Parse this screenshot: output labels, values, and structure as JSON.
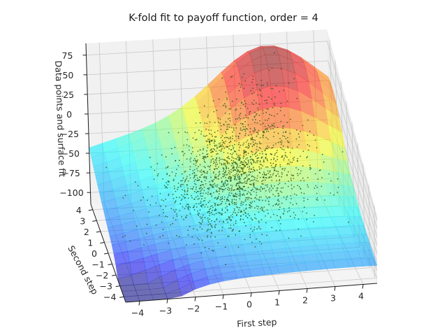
{
  "chart_data": {
    "type": "3d-surface-scatter",
    "title": "K-fold fit to payoff function, order = 4",
    "xlabel": "First step",
    "ylabel": "Second step",
    "zlabel": "Data points and surface fit",
    "x_ticks": [
      "−4",
      "−3",
      "−2",
      "−1",
      "0",
      "1",
      "2",
      "3",
      "4"
    ],
    "y_ticks": [
      "−4",
      "−3",
      "−2",
      "−1",
      "0",
      "1",
      "2",
      "3",
      "4"
    ],
    "z_ticks": [
      "75",
      "50",
      "25",
      "0",
      "−25",
      "−50",
      "−75",
      "−100"
    ],
    "xlim": [
      -4.5,
      4.5
    ],
    "ylim": [
      -4.5,
      4.5
    ],
    "zlim": [
      -115,
      90
    ],
    "colormap": "jet",
    "surface_alpha": 0.55,
    "scatter_color": "#1e4d12",
    "surface": {
      "model": "polynomial order 4",
      "peak": {
        "x": 2.3,
        "y": 3.6,
        "z": 78
      },
      "trough": {
        "x": -4.5,
        "y": -4.5,
        "z": -110
      },
      "z_at_origin": -40
    },
    "scatter": {
      "points": 5000,
      "center": {
        "x": 0.3,
        "y": 0.6
      },
      "spread": {
        "x": 1.3,
        "y": 1.1
      }
    },
    "grid": true,
    "view": {
      "elev": 30,
      "azim": -100
    }
  }
}
